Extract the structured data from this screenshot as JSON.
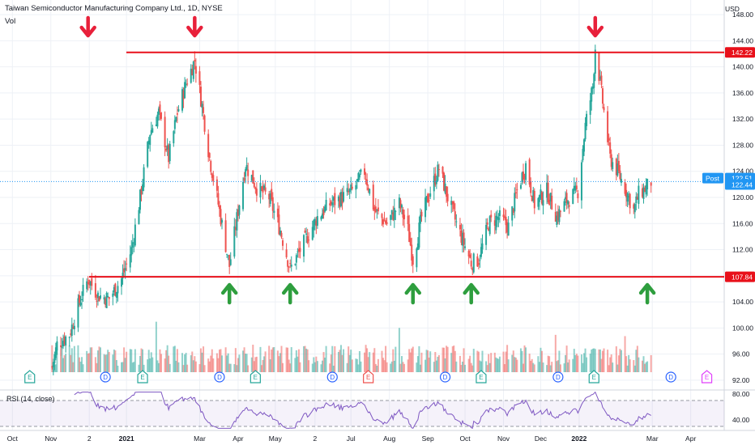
{
  "header": {
    "title": "Taiwan Semiconductor Manufacturing Company Ltd., 1D, NYSE",
    "volume_label": "Vol",
    "currency": "USD"
  },
  "rsi": {
    "label": "RSI (14, close)",
    "levels": [
      80.0,
      40.0
    ],
    "range": [
      25,
      85
    ],
    "bands": [
      70,
      30
    ],
    "color": "#7e57c2"
  },
  "markers": {
    "resistance_price": 142.22,
    "support_price": 107.84,
    "resistance_label": "142.22",
    "support_label": "107.84",
    "post_label": "Post",
    "post_price": "122.51",
    "last_price": "122.44",
    "line_color": "#e8101a",
    "arrow_up_color": "#2e9e3e",
    "arrow_down_color": "#e8203a",
    "down_arrows": [
      "2020-12-01",
      "2021-02-25",
      "2022-01-14"
    ],
    "up_arrows": [
      "2021-03-25",
      "2021-05-13",
      "2021-08-20",
      "2021-10-06",
      "2022-02-25"
    ]
  },
  "events": [
    {
      "date": "2020-10-15",
      "type": "E",
      "color": "#26a69a"
    },
    {
      "date": "2020-12-15",
      "type": "D",
      "color": "#2962ff"
    },
    {
      "date": "2021-01-14",
      "type": "E",
      "color": "#26a69a"
    },
    {
      "date": "2021-03-17",
      "type": "D",
      "color": "#2962ff"
    },
    {
      "date": "2021-04-15",
      "type": "E",
      "color": "#26a69a"
    },
    {
      "date": "2021-06-16",
      "type": "D",
      "color": "#2962ff"
    },
    {
      "date": "2021-07-15",
      "type": "E",
      "color": "#ef5350"
    },
    {
      "date": "2021-09-15",
      "type": "D",
      "color": "#2962ff"
    },
    {
      "date": "2021-10-14",
      "type": "E",
      "color": "#26a69a"
    },
    {
      "date": "2021-12-15",
      "type": "D",
      "color": "#2962ff"
    },
    {
      "date": "2022-01-13",
      "type": "E",
      "color": "#26a69a"
    },
    {
      "date": "2022-03-16",
      "type": "D",
      "color": "#2962ff"
    },
    {
      "date": "2022-04-14",
      "type": "E",
      "color": "#e040fb"
    }
  ],
  "chart_data": {
    "type": "candlestick",
    "title": "Taiwan Semiconductor Manufacturing Company Ltd., 1D, NYSE",
    "ylim": [
      90.5,
      149.5
    ],
    "y_ticks": [
      92.0,
      96.0,
      100.0,
      104.0,
      108.0,
      112.0,
      116.0,
      120.0,
      124.0,
      128.0,
      132.0,
      136.0,
      140.0,
      144.0,
      148.0
    ],
    "x_range": [
      "2020-09-21",
      "2022-04-28"
    ],
    "x_ticks": [
      {
        "date": "2020-10-01",
        "label": "Oct"
      },
      {
        "date": "2020-11-01",
        "label": "Nov"
      },
      {
        "date": "2020-12-02",
        "label": "2"
      },
      {
        "date": "2021-01-01",
        "label": "2021"
      },
      {
        "date": "2021-03-01",
        "label": "Mar"
      },
      {
        "date": "2021-04-01",
        "label": "Apr"
      },
      {
        "date": "2021-05-01",
        "label": "May"
      },
      {
        "date": "2021-06-02",
        "label": "2"
      },
      {
        "date": "2021-07-01",
        "label": "Jul"
      },
      {
        "date": "2021-08-01",
        "label": "Aug"
      },
      {
        "date": "2021-09-01",
        "label": "Sep"
      },
      {
        "date": "2021-10-01",
        "label": "Oct"
      },
      {
        "date": "2021-11-01",
        "label": "Nov"
      },
      {
        "date": "2021-12-01",
        "label": "Dec"
      },
      {
        "date": "2022-01-01",
        "label": "2022"
      },
      {
        "date": "2022-03-01",
        "label": "Mar"
      },
      {
        "date": "2022-04-01",
        "label": "Apr"
      }
    ],
    "close_anchors": [
      [
        "2020-11-02",
        94.0
      ],
      [
        "2020-11-06",
        97.5
      ],
      [
        "2020-11-16",
        99.0
      ],
      [
        "2020-11-24",
        104.0
      ],
      [
        "2020-12-01",
        107.5
      ],
      [
        "2020-12-09",
        105.0
      ],
      [
        "2020-12-18",
        104.5
      ],
      [
        "2020-12-28",
        107.5
      ],
      [
        "2021-01-05",
        112.0
      ],
      [
        "2021-01-12",
        120.0
      ],
      [
        "2021-01-20",
        130.0
      ],
      [
        "2021-01-27",
        133.0
      ],
      [
        "2021-02-04",
        126.0
      ],
      [
        "2021-02-11",
        133.0
      ],
      [
        "2021-02-18",
        137.5
      ],
      [
        "2021-02-25",
        141.0
      ],
      [
        "2021-03-03",
        134.0
      ],
      [
        "2021-03-09",
        126.0
      ],
      [
        "2021-03-16",
        119.0
      ],
      [
        "2021-03-25",
        109.5
      ],
      [
        "2021-04-01",
        118.0
      ],
      [
        "2021-04-07",
        125.0
      ],
      [
        "2021-04-16",
        121.5
      ],
      [
        "2021-04-26",
        120.0
      ],
      [
        "2021-05-05",
        115.0
      ],
      [
        "2021-05-13",
        109.0
      ],
      [
        "2021-05-24",
        113.0
      ],
      [
        "2021-06-04",
        117.0
      ],
      [
        "2021-06-14",
        119.0
      ],
      [
        "2021-06-24",
        120.0
      ],
      [
        "2021-07-02",
        121.0
      ],
      [
        "2021-07-12",
        124.0
      ],
      [
        "2021-07-20",
        118.0
      ],
      [
        "2021-07-30",
        116.0
      ],
      [
        "2021-08-09",
        119.0
      ],
      [
        "2021-08-16",
        115.0
      ],
      [
        "2021-08-20",
        110.5
      ],
      [
        "2021-08-27",
        117.0
      ],
      [
        "2021-09-03",
        121.0
      ],
      [
        "2021-09-10",
        124.5
      ],
      [
        "2021-09-17",
        120.0
      ],
      [
        "2021-09-24",
        116.0
      ],
      [
        "2021-10-01",
        112.5
      ],
      [
        "2021-10-06",
        110.0
      ],
      [
        "2021-10-12",
        110.5
      ],
      [
        "2021-10-20",
        116.0
      ],
      [
        "2021-10-28",
        117.0
      ],
      [
        "2021-11-05",
        115.5
      ],
      [
        "2021-11-12",
        121.0
      ],
      [
        "2021-11-19",
        125.0
      ],
      [
        "2021-11-26",
        119.0
      ],
      [
        "2021-12-06",
        121.0
      ],
      [
        "2021-12-14",
        117.0
      ],
      [
        "2021-12-22",
        119.5
      ],
      [
        "2021-12-31",
        121.0
      ],
      [
        "2022-01-06",
        131.0
      ],
      [
        "2022-01-12",
        137.0
      ],
      [
        "2022-01-14",
        143.0
      ],
      [
        "2022-01-19",
        136.0
      ],
      [
        "2022-01-26",
        126.0
      ],
      [
        "2022-02-01",
        124.0
      ],
      [
        "2022-02-08",
        121.0
      ],
      [
        "2022-02-14",
        118.0
      ],
      [
        "2022-02-18",
        120.5
      ],
      [
        "2022-02-24",
        121.5
      ],
      [
        "2022-02-28",
        122.44
      ]
    ]
  }
}
